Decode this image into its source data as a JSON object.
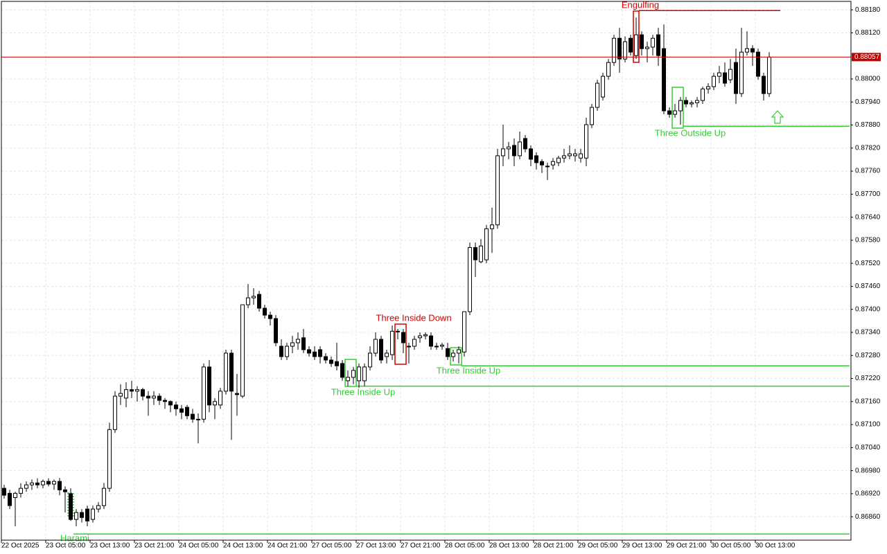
{
  "chart_data": {
    "type": "candlestick",
    "categories": [
      "22 Oct 2025",
      null,
      null,
      null,
      null,
      null,
      null,
      null,
      "23 Oct 05:00",
      null,
      null,
      null,
      null,
      null,
      null,
      null,
      "23 Oct 13:00",
      null,
      null,
      null,
      null,
      null,
      null,
      null,
      "23 Oct 21:00",
      null,
      null,
      null,
      null,
      null,
      null,
      null,
      "24 Oct 05:00",
      null,
      null,
      null,
      null,
      null,
      null,
      null,
      "24 Oct 13:00",
      null,
      null,
      null,
      null,
      null,
      null,
      null,
      "24 Oct 21:00",
      null,
      null,
      null,
      null,
      null,
      null,
      null,
      "27 Oct 05:00",
      null,
      null,
      null,
      null,
      null,
      null,
      null,
      "27 Oct 13:00",
      null,
      null,
      null,
      null,
      null,
      null,
      null,
      "27 Oct 21:00",
      null,
      null,
      null,
      null,
      null,
      null,
      null,
      "28 Oct 05:00",
      null,
      null,
      null,
      null,
      null,
      null,
      null,
      "28 Oct 13:00",
      null,
      null,
      null,
      null,
      null,
      null,
      null,
      "28 Oct 21:00",
      null,
      null,
      null,
      null,
      null,
      null,
      null,
      "29 Oct 05:00",
      null,
      null,
      null,
      null,
      null,
      null,
      null,
      "29 Oct 13:00",
      null,
      null,
      null,
      null,
      null,
      null,
      null,
      "29 Oct 21:00",
      null,
      null,
      null,
      null,
      null,
      null,
      null,
      "30 Oct 05:00",
      null,
      null,
      null,
      null,
      null,
      null,
      null,
      "30 Oct 13:00",
      null,
      null
    ],
    "open": [
      0.86934,
      0.86921,
      0.8691,
      0.86921,
      0.86934,
      0.86943,
      0.86948,
      0.86943,
      0.86952,
      0.86945,
      0.86952,
      0.8693,
      0.8692,
      0.86853,
      0.86871,
      0.8688,
      0.86853,
      0.8688,
      0.86889,
      0.86934,
      0.87087,
      0.87174,
      0.87169,
      0.87191,
      0.87187,
      0.87191,
      0.87174,
      0.87169,
      0.87174,
      0.87163,
      0.8716,
      0.87151,
      0.87141,
      0.87145,
      0.87127,
      0.87114,
      0.87114,
      0.8725,
      0.87151,
      0.87151,
      0.87187,
      0.87286,
      0.87181,
      0.87174,
      0.87412,
      0.8743,
      0.87439,
      0.87403,
      0.87385,
      0.87376,
      0.87304,
      0.87277,
      0.87304,
      0.87313,
      0.87326,
      0.87295,
      0.87289,
      0.87295,
      0.87277,
      0.87268,
      0.87264,
      0.87259,
      0.87214,
      0.87223,
      0.87214,
      0.87214,
      0.8725,
      0.87286,
      0.87322,
      0.87277,
      0.87282,
      0.87343,
      0.8734,
      0.87304,
      0.87304,
      0.87326,
      0.87331,
      0.87331,
      0.87304,
      0.87304,
      0.87298,
      0.87277,
      0.87286,
      0.87289,
      0.87394,
      0.87561,
      0.87524,
      0.87529,
      0.8761,
      0.8762,
      0.878,
      0.87818,
      0.87827,
      0.878,
      0.87845,
      0.87818,
      0.878,
      0.87785,
      0.87773,
      0.87776,
      0.87782,
      0.87794,
      0.878,
      0.878,
      0.87794,
      0.87794,
      0.87881,
      0.87926,
      0.87953,
      0.88007,
      0.88043,
      0.88106,
      0.88052,
      0.88106,
      0.88061,
      0.88115,
      0.88079,
      0.88083,
      0.88115,
      0.88079,
      0.87917,
      0.87908,
      0.87917,
      0.87944,
      0.87935,
      0.87938,
      0.87944,
      0.87974,
      0.8798,
      0.88007,
      0.88016,
      0.87998,
      0.88043,
      0.87962,
      0.8807,
      0.88079,
      0.8807,
      0.88007,
      0.87962
    ],
    "high": [
      0.86943,
      0.8693,
      0.86925,
      0.86947,
      0.86952,
      0.86957,
      0.8696,
      0.86957,
      0.8696,
      0.86957,
      0.86961,
      0.86939,
      0.86934,
      0.8688,
      0.8688,
      0.86889,
      0.86889,
      0.86898,
      0.86948,
      0.87105,
      0.87187,
      0.87205,
      0.8721,
      0.87214,
      0.872,
      0.87196,
      0.87187,
      0.87187,
      0.87181,
      0.87169,
      0.87163,
      0.8716,
      0.87151,
      0.87151,
      0.87141,
      0.87129,
      0.87259,
      0.87268,
      0.87169,
      0.87196,
      0.87295,
      0.87295,
      0.87232,
      0.87412,
      0.87466,
      0.87455,
      0.87448,
      0.87412,
      0.87394,
      0.87385,
      0.87322,
      0.87313,
      0.87331,
      0.8734,
      0.87349,
      0.87304,
      0.87304,
      0.87304,
      0.87286,
      0.87277,
      0.87313,
      0.87268,
      0.87241,
      0.8725,
      0.87259,
      0.87259,
      0.87304,
      0.8734,
      0.87331,
      0.87295,
      0.87358,
      0.87349,
      0.87349,
      0.87313,
      0.87331,
      0.8734,
      0.8734,
      0.8734,
      0.87313,
      0.87313,
      0.87313,
      0.87295,
      0.87304,
      0.87394,
      0.87574,
      0.87574,
      0.87583,
      0.8762,
      0.87665,
      0.87818,
      0.87881,
      0.87836,
      0.87845,
      0.87863,
      0.87854,
      0.87827,
      0.87809,
      0.87791,
      0.87782,
      0.87794,
      0.878,
      0.87818,
      0.87827,
      0.87818,
      0.87818,
      0.87899,
      0.87935,
      0.87998,
      0.88016,
      0.88052,
      0.88115,
      0.88133,
      0.88111,
      0.88115,
      0.8816,
      0.88124,
      0.88097,
      0.88115,
      0.88133,
      0.88142,
      0.87926,
      0.87935,
      0.87953,
      0.87953,
      0.87944,
      0.87953,
      0.8798,
      0.87989,
      0.88016,
      0.88034,
      0.88043,
      0.88052,
      0.88079,
      0.88133,
      0.88124,
      0.88088,
      0.88079,
      0.88016,
      0.8807
    ],
    "low": [
      0.86907,
      0.8688,
      0.86835,
      0.8691,
      0.86925,
      0.8693,
      0.86934,
      0.86934,
      0.86939,
      0.8693,
      0.86916,
      0.86871,
      0.86849,
      0.86835,
      0.86845,
      0.86835,
      0.86845,
      0.86871,
      0.8688,
      0.86925,
      0.87078,
      0.87151,
      0.87145,
      0.87169,
      0.8716,
      0.87163,
      0.87123,
      0.87151,
      0.87151,
      0.87141,
      0.87132,
      0.87123,
      0.87114,
      0.87114,
      0.87105,
      0.87051,
      0.87105,
      0.87132,
      0.87114,
      0.87141,
      0.87178,
      0.8706,
      0.87123,
      0.87169,
      0.87403,
      0.87412,
      0.87394,
      0.87376,
      0.87358,
      0.87304,
      0.87268,
      0.87268,
      0.87286,
      0.87295,
      0.87286,
      0.87277,
      0.87268,
      0.87259,
      0.87259,
      0.8725,
      0.87241,
      0.87214,
      0.872,
      0.87205,
      0.87196,
      0.872,
      0.87241,
      0.87277,
      0.87259,
      0.87259,
      0.87268,
      0.87322,
      0.87286,
      0.87259,
      0.87295,
      0.87313,
      0.87322,
      0.87295,
      0.87295,
      0.87295,
      0.87268,
      0.87264,
      0.87259,
      0.87277,
      0.87385,
      0.87484,
      0.8752,
      0.8752,
      0.87547,
      0.8761,
      0.87773,
      0.87791,
      0.87773,
      0.87791,
      0.87809,
      0.87773,
      0.87764,
      0.87755,
      0.87737,
      0.87764,
      0.87773,
      0.87782,
      0.87791,
      0.87785,
      0.87782,
      0.87773,
      0.87872,
      0.87917,
      0.87944,
      0.87998,
      0.88034,
      0.88016,
      0.88043,
      0.88061,
      0.88052,
      0.88061,
      0.88043,
      0.88061,
      0.88034,
      0.87908,
      0.87899,
      0.87899,
      0.87881,
      0.87926,
      0.87926,
      0.87926,
      0.87935,
      0.87962,
      0.87971,
      0.87989,
      0.8798,
      0.87989,
      0.87935,
      0.87953,
      0.88061,
      0.88034,
      0.87998,
      0.87944,
      0.87953
    ],
    "close": [
      0.86916,
      0.86889,
      0.86921,
      0.86934,
      0.86943,
      0.86948,
      0.86943,
      0.86952,
      0.86945,
      0.86952,
      0.8693,
      0.86925,
      0.86853,
      0.86871,
      0.86858,
      0.86849,
      0.8688,
      0.86889,
      0.86934,
      0.87087,
      0.87174,
      0.87181,
      0.87191,
      0.87187,
      0.87191,
      0.87174,
      0.87169,
      0.87174,
      0.87163,
      0.8716,
      0.87151,
      0.87141,
      0.87132,
      0.87123,
      0.87114,
      0.87114,
      0.8725,
      0.87151,
      0.8716,
      0.87187,
      0.87286,
      0.87187,
      0.87178,
      0.87412,
      0.8743,
      0.87434,
      0.87403,
      0.87385,
      0.87376,
      0.87313,
      0.87277,
      0.87304,
      0.87313,
      0.87322,
      0.87295,
      0.87286,
      0.87277,
      0.87277,
      0.87268,
      0.87259,
      0.87253,
      0.87223,
      0.87223,
      0.87241,
      0.8725,
      0.8725,
      0.87286,
      0.87322,
      0.87268,
      0.87286,
      0.87343,
      0.87343,
      0.87313,
      0.87304,
      0.87322,
      0.87331,
      0.87334,
      0.87304,
      0.87304,
      0.87307,
      0.87277,
      0.87286,
      0.87295,
      0.87394,
      0.87561,
      0.87529,
      0.87565,
      0.8761,
      0.8762,
      0.878,
      0.87818,
      0.87823,
      0.878,
      0.87836,
      0.87818,
      0.87791,
      0.87782,
      0.87776,
      0.87773,
      0.87785,
      0.87794,
      0.878,
      0.87805,
      0.87805,
      0.87805,
      0.87881,
      0.87926,
      0.87989,
      0.88007,
      0.88043,
      0.88106,
      0.88052,
      0.88097,
      0.8807,
      0.88115,
      0.88079,
      0.88083,
      0.88106,
      0.88061,
      0.87917,
      0.87908,
      0.87917,
      0.87944,
      0.87935,
      0.87938,
      0.87944,
      0.87974,
      0.8798,
      0.88007,
      0.88016,
      0.87989,
      0.88025,
      0.87962,
      0.8807,
      0.88079,
      0.8807,
      0.88007,
      0.87962,
      0.88057
    ],
    "bull_color": "#ffffff",
    "bear_color": "#000000",
    "outline_color": "#000000",
    "ylim": [
      0.86799,
      0.88202
    ],
    "yticks": [
      {
        "value": 0.8686,
        "label": "0.86860"
      },
      {
        "value": 0.8692,
        "label": "0.86920"
      },
      {
        "value": 0.8698,
        "label": "0.86980"
      },
      {
        "value": 0.8704,
        "label": "0.87040"
      },
      {
        "value": 0.871,
        "label": "0.87100"
      },
      {
        "value": 0.8716,
        "label": "0.87160"
      },
      {
        "value": 0.8722,
        "label": "0.87220"
      },
      {
        "value": 0.8728,
        "label": "0.87280"
      },
      {
        "value": 0.8734,
        "label": "0.87340"
      },
      {
        "value": 0.874,
        "label": "0.87400"
      },
      {
        "value": 0.8746,
        "label": "0.87460"
      },
      {
        "value": 0.8752,
        "label": "0.87520"
      },
      {
        "value": 0.8758,
        "label": "0.87580"
      },
      {
        "value": 0.8764,
        "label": "0.87640"
      },
      {
        "value": 0.877,
        "label": "0.87700"
      },
      {
        "value": 0.8776,
        "label": "0.87760"
      },
      {
        "value": 0.8782,
        "label": "0.87820"
      },
      {
        "value": 0.8788,
        "label": "0.87880"
      },
      {
        "value": 0.8794,
        "label": "0.87940"
      },
      {
        "value": 0.88,
        "label": "0.88000"
      },
      {
        "value": 0.8812,
        "label": "0.88120"
      },
      {
        "value": 0.8818,
        "label": "0.88180"
      }
    ],
    "grid": true,
    "last_price": 0.88057,
    "last_price_color": "#c00000",
    "patterns": [
      {
        "label": "Harami",
        "level": 0.86815,
        "color": "#32cd32"
      },
      {
        "label": "Three Inside Up",
        "level": 0.872,
        "color": "#32cd32"
      },
      {
        "label": "Three Inside Down",
        "color": "#d40000"
      },
      {
        "label": "Three Inside Up",
        "level": 0.87253,
        "color": "#32cd32"
      },
      {
        "label": "Engulfing",
        "level": 0.88178,
        "color": "#d40000"
      },
      {
        "label": "Three Outside Up",
        "level": 0.87877,
        "color": "#32cd32"
      }
    ]
  }
}
